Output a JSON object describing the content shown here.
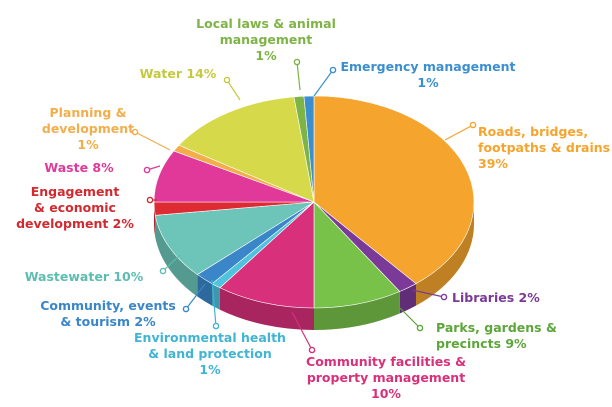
{
  "chart_data": {
    "type": "pie",
    "title": "",
    "style": "3d",
    "slices": [
      {
        "label": [
          "Roads, bridges,",
          "footpaths & drains",
          "39%"
        ],
        "value": 39,
        "color": "#F5A42E",
        "label_color": "#F5A42E"
      },
      {
        "label": [
          "Libraries 2%"
        ],
        "value": 2,
        "color": "#7B3A97",
        "label_color": "#7B3A97"
      },
      {
        "label": [
          "Parks, gardens &",
          "precincts 9%"
        ],
        "value": 9,
        "color": "#79C24A",
        "label_color": "#5CA63A"
      },
      {
        "label": [
          "Community facilities &",
          "property management",
          "10%"
        ],
        "value": 10,
        "color": "#D8307A",
        "label_color": "#D8307A"
      },
      {
        "label": [
          "Environmental health",
          "& land protection",
          "1%"
        ],
        "value": 1,
        "color": "#4FC3DE",
        "label_color": "#3FB4D3"
      },
      {
        "label": [
          "Community, events",
          "& tourism 2%"
        ],
        "value": 2,
        "color": "#3A86C8",
        "label_color": "#3A86C8"
      },
      {
        "label": [
          "Wastewater 10%"
        ],
        "value": 10,
        "color": "#6CC5B8",
        "label_color": "#5DBDB1"
      },
      {
        "label": [
          "Engagement",
          "& economic",
          "development 2%"
        ],
        "value": 2,
        "color": "#DE2A33",
        "label_color": "#D12A30"
      },
      {
        "label": [
          "Waste 8%"
        ],
        "value": 8,
        "color": "#E0399A",
        "label_color": "#E0399A"
      },
      {
        "label": [
          "Planning &",
          "development",
          "1%"
        ],
        "value": 1,
        "color": "#F3AE4B",
        "label_color": "#F3AE4B"
      },
      {
        "label": [
          "Water 14%"
        ],
        "value": 14,
        "color": "#D6DA4A",
        "label_color": "#C5C93F"
      },
      {
        "label": [
          "Local laws & animal",
          "management",
          "1%"
        ],
        "value": 1,
        "color": "#7DB445",
        "label_color": "#7DB445"
      },
      {
        "label": [
          "Emergency management",
          "1%"
        ],
        "value": 1,
        "color": "#3B8FCF",
        "label_color": "#3B8FCF"
      }
    ]
  }
}
